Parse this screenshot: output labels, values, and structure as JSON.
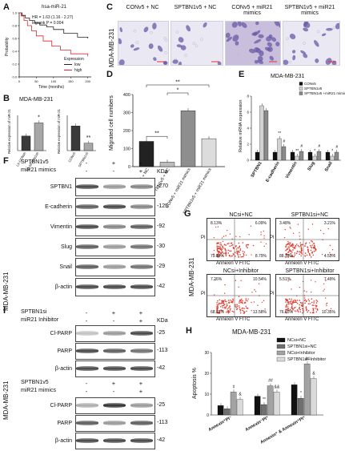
{
  "panels": {
    "A": {
      "letter": "A",
      "title": "hsa-miR-21",
      "hr": "HR = 1.63 (1.16 - 2.27)",
      "logrank": "logrank P = 0.004",
      "ylabel": "Probability",
      "xlabel": "Time (months)",
      "xticks": [
        "0",
        "50",
        "100",
        "150",
        "200"
      ],
      "yticks": [
        "0.0",
        "0.2",
        "0.4",
        "0.6",
        "0.8",
        "1.0"
      ],
      "legend_title": "Expression",
      "legend": [
        "low",
        "high"
      ],
      "colors": {
        "low": "#222222",
        "high": "#e0262b"
      }
    },
    "B": {
      "letter": "B",
      "title": "MDA-MB-231",
      "left_ylabel": "Relative expression of miR-21",
      "right_ylabel": "Relative expression of miR-21",
      "left_categories": [
        "LV-CONsh",
        "LV-SPTBN1sh"
      ],
      "right_categories": [
        "CONv5",
        "SPTBN1v5"
      ],
      "left_values": [
        1.0,
        1.9
      ],
      "right_values": [
        1.0,
        0.3
      ],
      "left_sig": "*",
      "right_sig": "**",
      "colors": {
        "control": "#3a3a3a",
        "treat": "#a7a7a7"
      }
    },
    "C": {
      "letter": "C",
      "side_label": "MDA-MB-231",
      "headers": [
        "CONv5 + NC",
        "SPTBN1v5 + NC",
        "CONv5 + miR21 mimics",
        "SPTBN1v5 + miR21 mimics"
      ]
    },
    "D": {
      "letter": "D",
      "ylabel": "Migrated cell numbers",
      "categories": [
        "CONv5 + NC",
        "SPTBN1v5 + NC",
        "CONv5 + miR21 mimics",
        "SPTBN1v5 + miR21 mimics"
      ],
      "values": [
        140,
        25,
        310,
        155
      ],
      "ylim": [
        0,
        400
      ],
      "yticks": [
        "0",
        "100",
        "200",
        "300",
        "400"
      ],
      "sig": [
        "**",
        "*",
        "**"
      ],
      "colors": [
        "#222222",
        "#bdbdbd",
        "#8e8e8e",
        "#dcdcdc"
      ]
    },
    "E": {
      "letter": "E",
      "title": "MDA-MB-231",
      "ylabel": "Relative mRNA expression",
      "categories": [
        "SPTBN1",
        "E-cadherin",
        "Vimentin",
        "Slug",
        "Snail"
      ],
      "legend": [
        "CONv5",
        "SPTBN1v5",
        "SPTBN1v5 +miR21 mimics"
      ],
      "series": [
        {
          "values": [
            1.0,
            1.0,
            1.0,
            1.0,
            1.0
          ]
        },
        {
          "values": [
            6.8,
            2.7,
            0.5,
            0.5,
            0.5
          ]
        },
        {
          "values": [
            6.2,
            1.7,
            1.1,
            1.1,
            1.0
          ]
        }
      ],
      "ylim": [
        0,
        8
      ],
      "yticks": [
        "0",
        "2",
        "4",
        "6",
        "8"
      ],
      "marks": [
        "**",
        "#",
        "**",
        "#",
        "*",
        "#",
        "*",
        "#"
      ],
      "colors": [
        "#111111",
        "#d2d2d2",
        "#8a8a8a"
      ]
    },
    "F": {
      "letter": "F",
      "cond_labels": [
        "SPTBN1v5",
        "miR21 mimics"
      ],
      "signs": [
        [
          "-",
          "+",
          "+"
        ],
        [
          "-",
          "-",
          "+"
        ]
      ],
      "kda_title": "KDa",
      "side_label": "MDA-MB-231",
      "rows": [
        {
          "name": "SPTBN1",
          "kda": "-270"
        },
        {
          "name": "E-cadherin",
          "kda": "-125"
        },
        {
          "name": "Vimentin",
          "kda": "-92"
        },
        {
          "name": "Slug",
          "kda": "-30"
        },
        {
          "name": "Snail",
          "kda": "-29"
        },
        {
          "name": "β-actin",
          "kda": "-42"
        }
      ]
    },
    "G": {
      "letter": "G",
      "side_label": "MDA-MB-231",
      "ylabel": "PI",
      "xlabel": "Annexin V FITC",
      "plots": [
        {
          "title": "NCsi+NC",
          "q": [
            "8.13%",
            "6.09%",
            "79.89%",
            "8.79%"
          ]
        },
        {
          "title": "SPTBN1si+NC",
          "q": [
            "3.48%",
            "3.21%",
            "88.78%",
            "4.53%"
          ]
        },
        {
          "title": "NCsi+Inhibitor",
          "q": [
            "7.26%",
            "10.54%",
            "68.62%",
            "13.58%"
          ]
        },
        {
          "title": "SPTBN1si+Inhibitor",
          "q": [
            "5.51%",
            "7.49%",
            "76.65%",
            "10.35%"
          ]
        }
      ]
    },
    "H": {
      "letter": "H",
      "title": "MDA-MB-231",
      "ylabel": "Apoptosis %",
      "categories": [
        "Annexin⁺PI⁻",
        "Annexin⁻PI⁺",
        "Annexin⁺ & Annexin⁺PI⁺"
      ],
      "legend": [
        "NCsi+NC",
        "SPTBN1si+NC",
        "NCsi+Inhibitor",
        "SPTBN1si+Inhibitor"
      ],
      "series": [
        {
          "values": [
            4.5,
            9.0,
            14.5
          ]
        },
        {
          "values": [
            3.0,
            5.0,
            8.0
          ]
        },
        {
          "values": [
            11.0,
            14.0,
            24.5
          ]
        },
        {
          "values": [
            7.5,
            11.0,
            17.5
          ]
        }
      ],
      "ylim": [
        0,
        30
      ],
      "yticks": [
        "0",
        "10",
        "20",
        "30"
      ],
      "marks": [
        "#",
        "&",
        "**",
        "##",
        "&&",
        "*",
        "##",
        "&"
      ],
      "colors": [
        "#111111",
        "#6f6f6f",
        "#a3a3a3",
        "#dadada"
      ]
    },
    "I": {
      "letter": "I",
      "top_cond": [
        "SPTBN1si",
        "miR21 Inhibitor"
      ],
      "top_signs": [
        [
          "-",
          "+",
          "+"
        ],
        [
          "-",
          "-",
          "+"
        ]
      ],
      "kda_title": "KDa",
      "top_rows": [
        {
          "name": "Cl-PARP",
          "kda": "-25"
        },
        {
          "name": "PARP",
          "kda": "-113"
        },
        {
          "name": "β-actin",
          "kda": "-42"
        }
      ],
      "bottom_cond": [
        "SPTBN1v5",
        "miR21 mimics"
      ],
      "bottom_signs": [
        [
          "-",
          "+",
          "+"
        ],
        [
          "-",
          "-",
          "+"
        ]
      ],
      "bottom_rows": [
        {
          "name": "Cl-PARP",
          "kda": "-25"
        },
        {
          "name": "PARP",
          "kda": "-113"
        },
        {
          "name": "β-actin",
          "kda": "-42"
        }
      ],
      "side_label": "MDA-MB-231"
    }
  }
}
